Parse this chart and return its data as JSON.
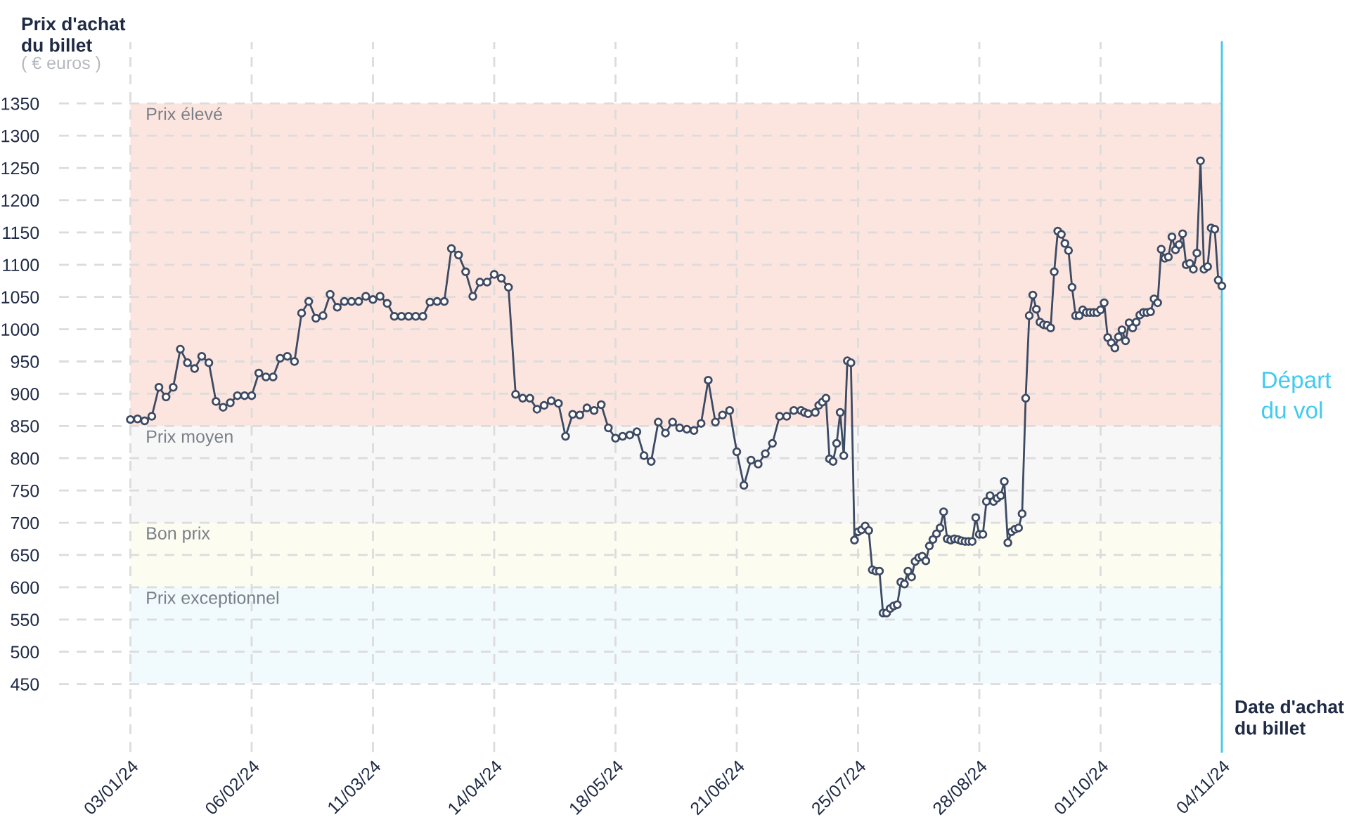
{
  "chart_data": {
    "type": "line",
    "ylabel": "Prix d'achat\ndu billet",
    "xlabel": "Date d'achat\ndu billet",
    "annotations": [
      "( € euros )"
    ],
    "x": [
      "2024-01-03",
      "2024-01-05",
      "2024-01-07",
      "2024-01-09",
      "2024-01-11",
      "2024-01-13",
      "2024-01-15",
      "2024-01-17",
      "2024-01-19",
      "2024-01-21",
      "2024-01-23",
      "2024-01-25",
      "2024-01-27",
      "2024-01-29",
      "2024-01-31",
      "2024-02-02",
      "2024-02-04",
      "2024-02-06",
      "2024-02-08",
      "2024-02-10",
      "2024-02-12",
      "2024-02-14",
      "2024-02-16",
      "2024-02-18",
      "2024-02-20",
      "2024-02-22",
      "2024-02-24",
      "2024-02-26",
      "2024-02-28",
      "2024-03-01",
      "2024-03-03",
      "2024-03-05",
      "2024-03-07",
      "2024-03-09",
      "2024-03-11",
      "2024-03-13",
      "2024-03-15",
      "2024-03-17",
      "2024-03-19",
      "2024-03-21",
      "2024-03-23",
      "2024-03-25",
      "2024-03-27",
      "2024-03-29",
      "2024-03-31",
      "2024-04-02",
      "2024-04-04",
      "2024-04-06",
      "2024-04-08",
      "2024-04-10",
      "2024-04-12",
      "2024-04-14",
      "2024-04-16",
      "2024-04-18",
      "2024-04-20",
      "2024-04-22",
      "2024-04-24",
      "2024-04-26",
      "2024-04-28",
      "2024-04-30",
      "2024-05-02",
      "2024-05-04",
      "2024-05-06",
      "2024-05-08",
      "2024-05-10",
      "2024-05-12",
      "2024-05-14",
      "2024-05-16",
      "2024-05-18",
      "2024-05-20",
      "2024-05-22",
      "2024-05-24",
      "2024-05-26",
      "2024-05-28",
      "2024-05-30",
      "2024-06-01",
      "2024-06-03",
      "2024-06-05",
      "2024-06-07",
      "2024-06-09",
      "2024-06-11",
      "2024-06-13",
      "2024-06-15",
      "2024-06-17",
      "2024-06-19",
      "2024-06-21",
      "2024-06-23",
      "2024-06-25",
      "2024-06-27",
      "2024-06-29",
      "2024-07-01",
      "2024-07-03",
      "2024-07-05",
      "2024-07-07",
      "2024-07-09",
      "2024-07-10",
      "2024-07-11",
      "2024-07-13",
      "2024-07-14",
      "2024-07-15",
      "2024-07-16",
      "2024-07-17",
      "2024-07-18",
      "2024-07-19",
      "2024-07-20",
      "2024-07-21",
      "2024-07-22",
      "2024-07-23",
      "2024-07-24",
      "2024-07-25",
      "2024-07-26",
      "2024-07-27",
      "2024-07-28",
      "2024-07-29",
      "2024-07-30",
      "2024-07-31",
      "2024-08-01",
      "2024-08-02",
      "2024-08-03",
      "2024-08-04",
      "2024-08-05",
      "2024-08-06",
      "2024-08-07",
      "2024-08-08",
      "2024-08-09",
      "2024-08-10",
      "2024-08-11",
      "2024-08-12",
      "2024-08-13",
      "2024-08-14",
      "2024-08-15",
      "2024-08-16",
      "2024-08-17",
      "2024-08-18",
      "2024-08-19",
      "2024-08-20",
      "2024-08-21",
      "2024-08-22",
      "2024-08-23",
      "2024-08-24",
      "2024-08-25",
      "2024-08-26",
      "2024-08-27",
      "2024-08-28",
      "2024-08-29",
      "2024-08-30",
      "2024-08-31",
      "2024-09-01",
      "2024-09-02",
      "2024-09-03",
      "2024-09-04",
      "2024-09-05",
      "2024-09-06",
      "2024-09-07",
      "2024-09-08",
      "2024-09-09",
      "2024-09-10",
      "2024-09-11",
      "2024-09-12",
      "2024-09-13",
      "2024-09-14",
      "2024-09-15",
      "2024-09-16",
      "2024-09-17",
      "2024-09-18",
      "2024-09-19",
      "2024-09-20",
      "2024-09-21",
      "2024-09-22",
      "2024-09-23",
      "2024-09-24",
      "2024-09-25",
      "2024-09-26",
      "2024-09-27",
      "2024-09-28",
      "2024-09-29",
      "2024-09-30",
      "2024-10-01",
      "2024-10-02",
      "2024-10-03",
      "2024-10-04",
      "2024-10-05",
      "2024-10-06",
      "2024-10-07",
      "2024-10-08",
      "2024-10-09",
      "2024-10-10",
      "2024-10-11",
      "2024-10-12",
      "2024-10-13",
      "2024-10-14",
      "2024-10-15",
      "2024-10-16",
      "2024-10-17",
      "2024-10-18",
      "2024-10-19",
      "2024-10-20",
      "2024-10-21",
      "2024-10-22",
      "2024-10-23",
      "2024-10-24",
      "2024-10-25",
      "2024-10-26",
      "2024-10-27",
      "2024-10-28",
      "2024-10-29",
      "2024-10-30",
      "2024-10-31",
      "2024-11-01",
      "2024-11-02",
      "2024-11-03",
      "2024-11-04"
    ],
    "series": [
      {
        "color": "#3d4a63",
        "values": [
          860,
          861,
          858,
          865,
          910,
          895,
          910,
          969,
          948,
          939,
          958,
          948,
          888,
          879,
          886,
          897,
          897,
          897,
          932,
          926,
          926,
          955,
          958,
          950,
          1025,
          1043,
          1017,
          1021,
          1054,
          1034,
          1043,
          1043,
          1043,
          1051,
          1046,
          1051,
          1040,
          1020,
          1020,
          1020,
          1020,
          1020,
          1042,
          1043,
          1043,
          1125,
          1115,
          1089,
          1051,
          1073,
          1073,
          1085,
          1079,
          1065,
          899,
          893,
          893,
          876,
          882,
          889,
          885,
          834,
          868,
          867,
          878,
          874,
          883,
          847,
          831,
          834,
          836,
          841,
          804,
          795,
          856,
          839,
          856,
          847,
          845,
          843,
          854,
          921,
          856,
          867,
          874,
          810,
          758,
          797,
          791,
          807,
          823,
          865,
          865,
          874,
          874,
          871,
          869,
          871,
          882,
          887,
          893,
          799,
          795,
          823,
          871,
          804,
          951,
          948,
          673,
          686,
          689,
          695,
          688,
          627,
          625,
          625,
          560,
          560,
          567,
          571,
          573,
          608,
          605,
          625,
          616,
          640,
          646,
          648,
          641,
          664,
          674,
          683,
          692,
          717,
          675,
          673,
          675,
          674,
          672,
          671,
          671,
          671,
          708,
          682,
          682,
          733,
          742,
          733,
          738,
          742,
          764,
          669,
          686,
          690,
          692,
          714,
          893,
          1021,
          1053,
          1031,
          1011,
          1007,
          1006,
          1002,
          1089,
          1152,
          1147,
          1133,
          1122,
          1065,
          1021,
          1021,
          1030,
          1026,
          1026,
          1026,
          1026,
          1030,
          1041,
          987,
          979,
          971,
          988,
          999,
          982,
          1010,
          1002,
          1011,
          1022,
          1026,
          1026,
          1027,
          1047,
          1041,
          1124,
          1110,
          1112,
          1143,
          1123,
          1131,
          1148,
          1100,
          1102,
          1093,
          1118,
          1261,
          1093,
          1097,
          1157,
          1155,
          1076,
          1067
        ]
      }
    ],
    "marker": "circle",
    "line_style": "solid",
    "grid": true,
    "xlim": [
      "2023-12-14",
      "2024-11-04"
    ],
    "xticks": [
      {
        "value": "2024-01-03",
        "label": "03/01/24"
      },
      {
        "value": "2024-02-06",
        "label": "06/02/24"
      },
      {
        "value": "2024-03-11",
        "label": "11/03/24"
      },
      {
        "value": "2024-04-14",
        "label": "14/04/24"
      },
      {
        "value": "2024-05-18",
        "label": "18/05/24"
      },
      {
        "value": "2024-06-21",
        "label": "21/06/24"
      },
      {
        "value": "2024-07-25",
        "label": "25/07/24"
      },
      {
        "value": "2024-08-28",
        "label": "28/08/24"
      },
      {
        "value": "2024-10-01",
        "label": "01/10/24"
      },
      {
        "value": "2024-11-04",
        "label": "04/11/24"
      }
    ],
    "ylim": [
      345,
      1445
    ],
    "yticks": [
      450,
      500,
      550,
      600,
      650,
      700,
      750,
      800,
      850,
      900,
      950,
      1000,
      1050,
      1100,
      1150,
      1200,
      1250,
      1300,
      1350
    ],
    "bands": [
      {
        "axis": "y",
        "from": 850,
        "to": 1350,
        "label": "Prix élevé",
        "color": "#fde5df"
      },
      {
        "axis": "y",
        "from": 700,
        "to": 850,
        "label": "Prix moyen",
        "color": "#f7f7f7"
      },
      {
        "axis": "y",
        "from": 600,
        "to": 700,
        "label": "Bon prix",
        "color": "#fcfcf1"
      },
      {
        "axis": "y",
        "from": 450,
        "to": 600,
        "label": "Prix exceptionnel",
        "color": "#f1fafd"
      }
    ],
    "ref_lines": [
      {
        "axis": "x",
        "value": "2024-11-04",
        "label": "Départ\ndu vol",
        "color": "#3fcaf0",
        "line_style": "solid"
      }
    ]
  }
}
